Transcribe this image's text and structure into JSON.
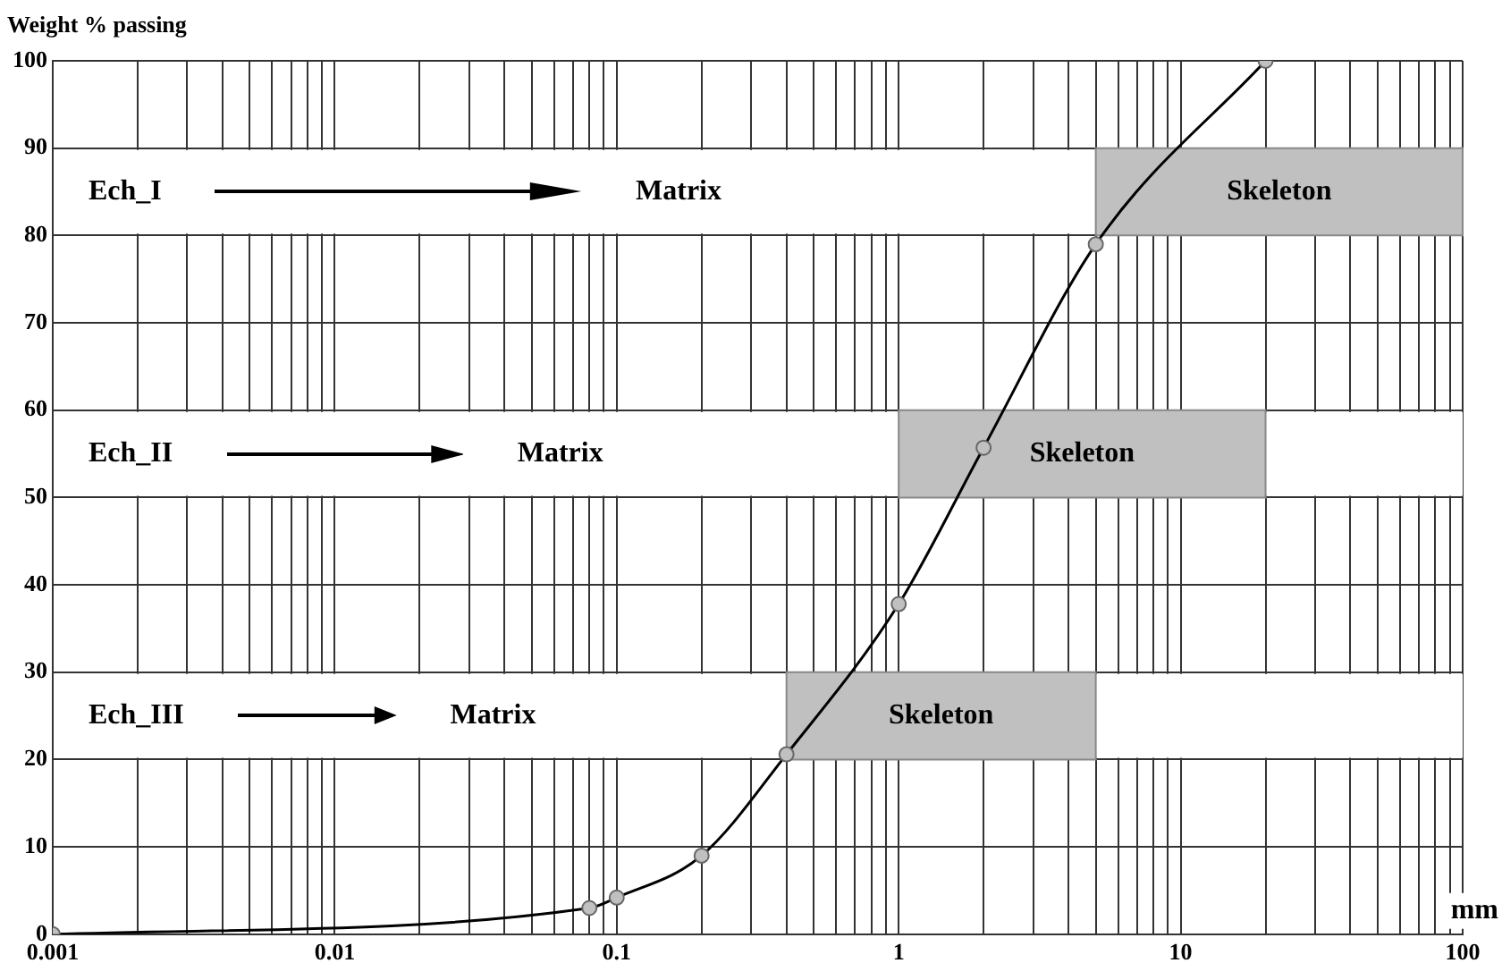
{
  "chart_data": {
    "type": "line",
    "ylabel": "Weight % passing",
    "xlabel": "mm",
    "x": [
      0.001,
      0.08,
      0.1,
      0.2,
      0.4,
      1,
      2,
      5,
      20
    ],
    "series": [
      {
        "color": "#000000",
        "values": [
          0,
          3,
          4.2,
          9,
          20.6,
          37.8,
          55.7,
          79,
          100
        ]
      }
    ],
    "bands": [
      {
        "axis": "y",
        "from": 80,
        "to": 90,
        "label": "Ech_I",
        "color": "#ffffff"
      },
      {
        "axis": "y",
        "from": 50,
        "to": 60,
        "label": "Ech_II",
        "color": "#ffffff"
      },
      {
        "axis": "y",
        "from": 20,
        "to": 30,
        "label": "Ech_III",
        "color": "#ffffff"
      },
      {
        "axis": "x",
        "from": 5,
        "to": 100,
        "label": "Skeleton",
        "color": "#c0c0c0"
      },
      {
        "axis": "x",
        "from": 1,
        "to": 20,
        "label": "Skeleton",
        "color": "#c0c0c0"
      },
      {
        "axis": "x",
        "from": 0.4,
        "to": 5,
        "label": "Skeleton",
        "color": "#c0c0c0"
      }
    ],
    "annotations": [
      "Matrix",
      "Matrix",
      "Matrix"
    ],
    "log": "x",
    "xlim": [
      0.001,
      100
    ],
    "ylim": [
      0,
      100
    ],
    "xticks": [
      0.001,
      {
        "value": 0.002,
        "label": null
      },
      {
        "value": 0.003,
        "label": null
      },
      {
        "value": 0.004,
        "label": null
      },
      {
        "value": 0.005,
        "label": null
      },
      {
        "value": 0.006,
        "label": null
      },
      {
        "value": 0.007,
        "label": null
      },
      {
        "value": 0.008,
        "label": null
      },
      {
        "value": 0.009,
        "label": null
      },
      0.01,
      {
        "value": 0.02,
        "label": null
      },
      {
        "value": 0.03,
        "label": null
      },
      {
        "value": 0.04,
        "label": null
      },
      {
        "value": 0.05,
        "label": null
      },
      {
        "value": 0.06,
        "label": null
      },
      {
        "value": 0.07,
        "label": null
      },
      {
        "value": 0.08,
        "label": null
      },
      {
        "value": 0.09,
        "label": null
      },
      0.1,
      {
        "value": 0.2,
        "label": null
      },
      {
        "value": 0.3,
        "label": null
      },
      {
        "value": 0.4,
        "label": null
      },
      {
        "value": 0.5,
        "label": null
      },
      {
        "value": 0.6,
        "label": null
      },
      {
        "value": 0.7,
        "label": null
      },
      {
        "value": 0.8,
        "label": null
      },
      {
        "value": 0.9,
        "label": null
      },
      1,
      {
        "value": 2,
        "label": null
      },
      {
        "value": 3,
        "label": null
      },
      {
        "value": 4,
        "label": null
      },
      {
        "value": 5,
        "label": null
      },
      {
        "value": 6,
        "label": null
      },
      {
        "value": 7,
        "label": null
      },
      {
        "value": 8,
        "label": null
      },
      {
        "value": 9,
        "label": null
      },
      10,
      {
        "value": 20,
        "label": null
      },
      {
        "value": 30,
        "label": null
      },
      {
        "value": 40,
        "label": null
      },
      {
        "value": 50,
        "label": null
      },
      {
        "value": 60,
        "label": null
      },
      {
        "value": 70,
        "label": null
      },
      {
        "value": 80,
        "label": null
      },
      {
        "value": 90,
        "label": null
      },
      100
    ],
    "yticks": [
      0,
      10,
      20,
      30,
      40,
      50,
      60,
      70,
      80,
      90,
      100
    ],
    "grid": true,
    "legend": false,
    "marker": "circle",
    "line_style": "solid"
  }
}
